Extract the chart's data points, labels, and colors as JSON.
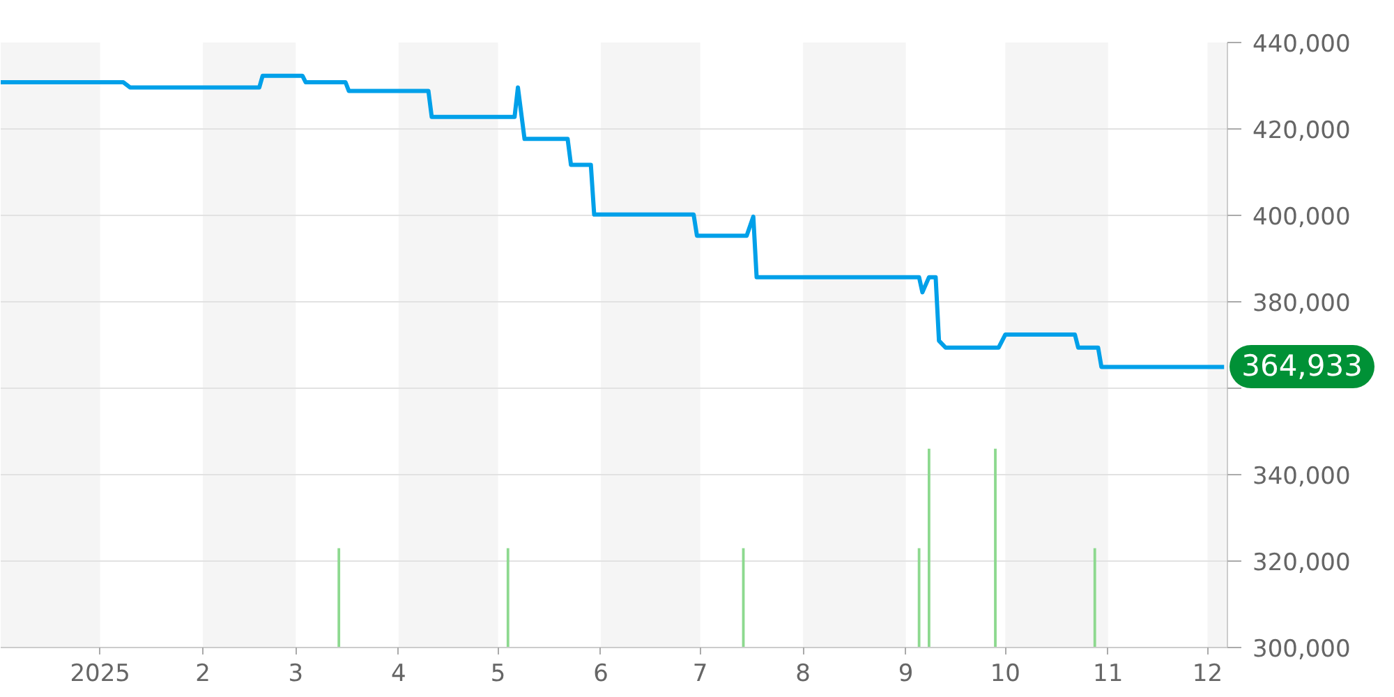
{
  "chart_data": {
    "type": "line",
    "xlim": [
      "2024-12-02",
      "2025-12-07"
    ],
    "xticks": [
      {
        "value": "2025-01",
        "label": "2025"
      },
      {
        "value": "2025-02",
        "label": "2"
      },
      {
        "value": "2025-03",
        "label": "3"
      },
      {
        "value": "2025-04",
        "label": "4"
      },
      {
        "value": "2025-05",
        "label": "5"
      },
      {
        "value": "2025-06",
        "label": "6"
      },
      {
        "value": "2025-07",
        "label": "7"
      },
      {
        "value": "2025-08",
        "label": "8"
      },
      {
        "value": "2025-09",
        "label": "9"
      },
      {
        "value": "2025-10",
        "label": "10"
      },
      {
        "value": "2025-11",
        "label": "11"
      },
      {
        "value": "2025-12",
        "label": "12"
      }
    ],
    "ylim": [
      300000,
      440000
    ],
    "yticks": [
      {
        "value": 300000,
        "label": "300,000"
      },
      {
        "value": 320000,
        "label": "320,000"
      },
      {
        "value": 340000,
        "label": "340,000"
      },
      {
        "value": 360000,
        "label": null
      },
      {
        "value": 380000,
        "label": "380,000"
      },
      {
        "value": 400000,
        "label": "400,000"
      },
      {
        "value": 420000,
        "label": "420,000"
      },
      {
        "value": 440000,
        "label": "440,000"
      }
    ],
    "grid": "y",
    "bands": [
      {
        "axis": "x",
        "from": "2024-12-02",
        "to": "2025-01-01",
        "color": "#f5f5f5"
      },
      {
        "axis": "x",
        "from": "2025-02-01",
        "to": "2025-03-01",
        "color": "#f5f5f5"
      },
      {
        "axis": "x",
        "from": "2025-04-01",
        "to": "2025-05-01",
        "color": "#f5f5f5"
      },
      {
        "axis": "x",
        "from": "2025-06-01",
        "to": "2025-07-01",
        "color": "#f5f5f5"
      },
      {
        "axis": "x",
        "from": "2025-08-01",
        "to": "2025-09-01",
        "color": "#f5f5f5"
      },
      {
        "axis": "x",
        "from": "2025-10-01",
        "to": "2025-11-01",
        "color": "#f5f5f5"
      },
      {
        "axis": "x",
        "from": "2025-12-01",
        "to": "2025-12-07",
        "color": "#f5f5f5"
      }
    ],
    "series": [
      {
        "type": "bar",
        "color": "#8dd98f",
        "x": [
          "2025-03-14",
          "2025-05-04",
          "2025-07-14",
          "2025-09-05",
          "2025-09-08",
          "2025-09-28",
          "2025-10-28"
        ],
        "values": [
          323000,
          323000,
          323000,
          323000,
          346000,
          346000,
          323000
        ]
      },
      {
        "color": "#00a0e9",
        "x": [
          "2024-12-02",
          "2025-01-08",
          "2025-01-10",
          "2025-02-18",
          "2025-02-19",
          "2025-03-03",
          "2025-03-04",
          "2025-03-16",
          "2025-03-17",
          "2025-04-10",
          "2025-04-11",
          "2025-05-06",
          "2025-05-07",
          "2025-05-09",
          "2025-05-22",
          "2025-05-23",
          "2025-05-29",
          "2025-05-30",
          "2025-06-29",
          "2025-06-30",
          "2025-07-15",
          "2025-07-17",
          "2025-07-18",
          "2025-09-05",
          "2025-09-06",
          "2025-09-08",
          "2025-09-10",
          "2025-09-11",
          "2025-09-13",
          "2025-09-29",
          "2025-10-01",
          "2025-10-22",
          "2025-10-23",
          "2025-10-29",
          "2025-10-30",
          "2025-12-06"
        ],
        "values": [
          430800,
          430800,
          429600,
          429600,
          432300,
          432300,
          430800,
          430800,
          428800,
          428800,
          422800,
          422800,
          429600,
          417700,
          417700,
          411700,
          411700,
          400200,
          400200,
          395300,
          395300,
          399700,
          385700,
          385700,
          382200,
          385700,
          385700,
          371000,
          369400,
          369400,
          372400,
          372400,
          369400,
          369400,
          364933,
          364933
        ]
      }
    ],
    "annotations": [
      {
        "text": "364,933",
        "x": "2025-12-06",
        "y": 364933
      }
    ]
  }
}
